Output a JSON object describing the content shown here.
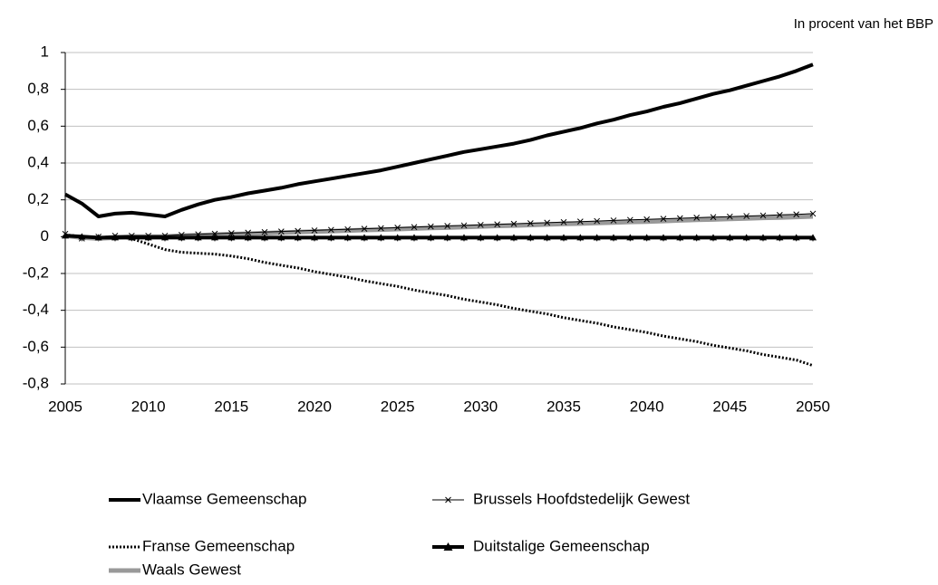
{
  "chart_data": {
    "type": "line",
    "unit": "In procent van het BBP",
    "x": [
      2005,
      2006,
      2007,
      2008,
      2009,
      2010,
      2011,
      2012,
      2013,
      2014,
      2015,
      2016,
      2017,
      2018,
      2019,
      2020,
      2021,
      2022,
      2023,
      2024,
      2025,
      2026,
      2027,
      2028,
      2029,
      2030,
      2031,
      2032,
      2033,
      2034,
      2035,
      2036,
      2037,
      2038,
      2039,
      2040,
      2041,
      2042,
      2043,
      2044,
      2045,
      2046,
      2047,
      2048,
      2049,
      2050
    ],
    "xlim": [
      2005,
      2050
    ],
    "xticks": [
      2005,
      2010,
      2015,
      2020,
      2025,
      2030,
      2035,
      2040,
      2045,
      2050
    ],
    "ylim": [
      -0.8,
      1
    ],
    "yticks": [
      {
        "value": -0.8,
        "label": "-0,8"
      },
      {
        "value": -0.6,
        "label": "-0,6"
      },
      {
        "value": -0.4,
        "label": "-0,4"
      },
      {
        "value": -0.2,
        "label": "-0,2"
      },
      0,
      {
        "value": 0.2,
        "label": "0,2"
      },
      {
        "value": 0.4,
        "label": "0,4"
      },
      {
        "value": 0.6,
        "label": "0,6"
      },
      {
        "value": 0.8,
        "label": "0,8"
      },
      1
    ],
    "grid": true,
    "series": [
      {
        "name": "Vlaamse Gemeenschap",
        "color": "#000000",
        "style": "solid",
        "values": [
          0.23,
          0.18,
          0.11,
          0.125,
          0.13,
          0.12,
          0.11,
          0.145,
          0.175,
          0.2,
          0.215,
          0.235,
          0.25,
          0.265,
          0.285,
          0.3,
          0.315,
          0.33,
          0.345,
          0.36,
          0.38,
          0.4,
          0.42,
          0.44,
          0.46,
          0.475,
          0.49,
          0.505,
          0.525,
          0.55,
          0.57,
          0.59,
          0.615,
          0.635,
          0.66,
          0.68,
          0.705,
          0.725,
          0.75,
          0.775,
          0.795,
          0.82,
          0.845,
          0.87,
          0.9,
          0.935
        ]
      },
      {
        "name": "Brussels Hoofdstedelijk Gewest",
        "color": "#000000",
        "style": "solid",
        "marker": "x",
        "values": [
          0.015,
          -0.01,
          0,
          0.005,
          0.005,
          0.005,
          0.005,
          0.01,
          0.013,
          0.016,
          0.019,
          0.022,
          0.025,
          0.028,
          0.031,
          0.034,
          0.037,
          0.04,
          0.043,
          0.046,
          0.049,
          0.052,
          0.055,
          0.058,
          0.061,
          0.064,
          0.067,
          0.07,
          0.073,
          0.076,
          0.079,
          0.082,
          0.085,
          0.088,
          0.091,
          0.094,
          0.097,
          0.1,
          0.103,
          0.106,
          0.109,
          0.112,
          0.115,
          0.118,
          0.121,
          0.125
        ]
      },
      {
        "name": "Franse Gemeenschap",
        "color": "#000000",
        "style": "dotted",
        "values": [
          0.01,
          0,
          -0.005,
          0,
          -0.01,
          -0.04,
          -0.07,
          -0.085,
          -0.09,
          -0.095,
          -0.105,
          -0.12,
          -0.14,
          -0.155,
          -0.17,
          -0.19,
          -0.205,
          -0.22,
          -0.24,
          -0.255,
          -0.27,
          -0.29,
          -0.305,
          -0.32,
          -0.34,
          -0.355,
          -0.37,
          -0.39,
          -0.405,
          -0.42,
          -0.44,
          -0.455,
          -0.47,
          -0.49,
          -0.505,
          -0.52,
          -0.54,
          -0.555,
          -0.57,
          -0.59,
          -0.605,
          -0.62,
          -0.64,
          -0.655,
          -0.67,
          -0.7
        ]
      },
      {
        "name": "Duitstalige Gemeenschap",
        "color": "#000000",
        "style": "solid",
        "marker": "triangle",
        "values": [
          0.005,
          0,
          -0.005,
          -0.005,
          -0.005,
          -0.005,
          -0.005,
          -0.005,
          -0.005,
          -0.005,
          -0.005,
          -0.005,
          -0.005,
          -0.005,
          -0.005,
          -0.005,
          -0.005,
          -0.005,
          -0.005,
          -0.005,
          -0.005,
          -0.005,
          -0.005,
          -0.005,
          -0.005,
          -0.005,
          -0.005,
          -0.005,
          -0.005,
          -0.005,
          -0.005,
          -0.005,
          -0.005,
          -0.005,
          -0.005,
          -0.005,
          -0.005,
          -0.005,
          -0.005,
          -0.005,
          -0.005,
          -0.005,
          -0.005,
          -0.005,
          -0.005,
          -0.005
        ]
      },
      {
        "name": "Waals Gewest",
        "color": "#999999",
        "style": "solid",
        "values": [
          0.005,
          -0.005,
          -0.01,
          -0.005,
          0,
          0,
          0,
          0.005,
          0.008,
          0.011,
          0.014,
          0.016,
          0.019,
          0.022,
          0.025,
          0.027,
          0.03,
          0.033,
          0.036,
          0.038,
          0.041,
          0.044,
          0.047,
          0.049,
          0.052,
          0.055,
          0.058,
          0.06,
          0.063,
          0.066,
          0.069,
          0.071,
          0.074,
          0.077,
          0.08,
          0.082,
          0.085,
          0.088,
          0.091,
          0.093,
          0.096,
          0.099,
          0.102,
          0.104,
          0.107,
          0.11
        ]
      }
    ]
  }
}
